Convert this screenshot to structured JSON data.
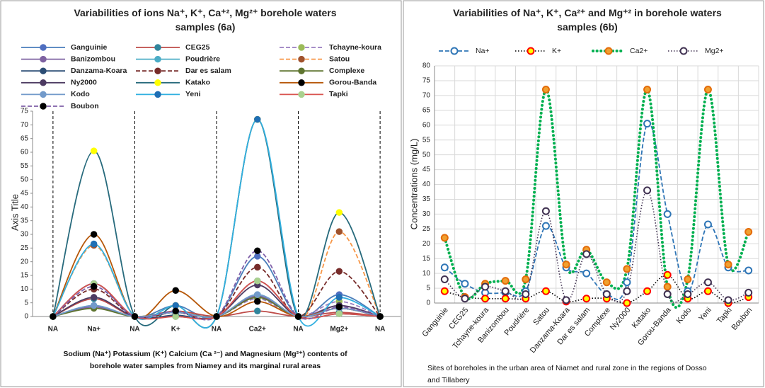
{
  "chart_data": [
    {
      "type": "line",
      "title": "Variabilities of ions Na⁺, K⁺, Ca⁺², Mg²⁺ borehole waters samples (6a)",
      "y_label": "Axis Title",
      "caption": "Sodium (Na⁺) Potassium  (K⁺) Calcium (Ca ²⁻) and Magnesium  (Mg²⁺) contents of borehole  water samples from Niamey and its marginal rural areas",
      "categories": [
        "NA",
        "Na+",
        "NA",
        "K+",
        "NA",
        "Ca2+",
        "NA",
        "Mg2+",
        "NA"
      ],
      "ylim": [
        0,
        75
      ],
      "yticks": [
        0,
        5,
        10,
        15,
        20,
        25,
        30,
        35,
        40,
        45,
        50,
        55,
        60,
        65,
        70,
        75
      ],
      "smooth": true,
      "series": [
        {
          "name": "Ganguinie",
          "color": "#4a7ebb",
          "marker_color": "#4f6ec0",
          "line_style": "solid",
          "values": [
            0,
            12,
            0,
            4,
            0,
            22,
            0,
            8,
            0
          ]
        },
        {
          "name": "CEG25",
          "color": "#be4b48",
          "marker_color": "#31859c",
          "line_style": "solid",
          "values": [
            0,
            6.5,
            0,
            2,
            0,
            2,
            0,
            1.5,
            0
          ]
        },
        {
          "name": "Tchayne-koura",
          "color": "#9a7fc0",
          "marker_color": "#9bbb59",
          "line_style": "dashed",
          "values": [
            0,
            3.5,
            0,
            1.5,
            0,
            6.5,
            0,
            5.5,
            0
          ]
        },
        {
          "name": "Banizombou",
          "color": "#7e62a1",
          "marker_color": "#7e62a1",
          "line_style": "solid",
          "values": [
            0,
            3.5,
            0,
            1.5,
            0,
            7.5,
            0,
            4,
            0
          ]
        },
        {
          "name": "Poudrière",
          "color": "#4bacc6",
          "marker_color": "#4bacc6",
          "line_style": "solid",
          "values": [
            0,
            4,
            0,
            1.5,
            0,
            8,
            0,
            3,
            0
          ]
        },
        {
          "name": "Satou",
          "color": "#f79646",
          "marker_color": "#a0522d",
          "line_style": "dashed",
          "values": [
            0,
            26,
            0,
            4,
            0,
            72,
            0,
            31,
            0
          ]
        },
        {
          "name": "Danzama-Koara",
          "color": "#2c4d75",
          "marker_color": "#2c4d75",
          "line_style": "solid",
          "values": [
            0,
            12,
            0,
            0.5,
            0,
            13,
            0,
            1,
            0
          ]
        },
        {
          "name": "Dar es salam",
          "color": "#772c2a",
          "marker_color": "#772c2a",
          "line_style": "dashed",
          "values": [
            0,
            10,
            0,
            1.5,
            0,
            18,
            0,
            16.5,
            0
          ]
        },
        {
          "name": "Complexe",
          "color": "#5f7530",
          "marker_color": "#5f7530",
          "line_style": "solid",
          "values": [
            0,
            3,
            0,
            1.5,
            0,
            7,
            0,
            3,
            0
          ]
        },
        {
          "name": "Ny2000",
          "color": "#4d3b62",
          "marker_color": "#4d3b62",
          "line_style": "solid",
          "values": [
            0,
            7,
            0,
            0,
            0,
            11.5,
            0,
            4,
            0
          ]
        },
        {
          "name": "Katako",
          "color": "#276a7c",
          "marker_color": "#ffff00",
          "line_style": "solid",
          "values": [
            0,
            60.5,
            0,
            4,
            0,
            72,
            0,
            38,
            0
          ]
        },
        {
          "name": "Gorou-Banda",
          "color": "#b65708",
          "marker_color": "#000000",
          "line_style": "solid",
          "values": [
            0,
            30,
            0,
            9.5,
            0,
            5.5,
            0,
            3,
            0
          ]
        },
        {
          "name": "Kodo",
          "color": "#729aca",
          "marker_color": "#729aca",
          "line_style": "solid",
          "values": [
            0,
            4,
            0,
            1.5,
            0,
            8,
            0,
            3,
            0
          ]
        },
        {
          "name": "Yeni",
          "color": "#31b0e0",
          "marker_color": "#1f6fb5",
          "line_style": "solid",
          "values": [
            0,
            26.5,
            0,
            4,
            0,
            72,
            0,
            7,
            0
          ]
        },
        {
          "name": "Tapki",
          "color": "#d9534f",
          "marker_color": "#a9d18e",
          "line_style": "solid",
          "values": [
            0,
            12,
            0,
            0,
            0,
            13,
            0,
            1,
            0
          ]
        },
        {
          "name": "Boubon",
          "color": "#7f5fa8",
          "marker_color": "#000000",
          "line_style": "dashed",
          "values": [
            0,
            11,
            0,
            2,
            0,
            24,
            0,
            3.5,
            0
          ]
        }
      ]
    },
    {
      "type": "line",
      "title": "Variabilities of Na⁺, K⁺, Ca²⁺ and Mg⁺² in borehole waters samples (6b)",
      "y_label": "Concentrations (mg/L)",
      "caption": "Sites of boreholes  in the urban area of Niamet and rural zone in the regions of Dosso and Tillabery",
      "categories": [
        "Ganguinie",
        "CEG25",
        "Tchayne-koura",
        "Banizombou",
        "Poudrière",
        "Satou",
        "Danzama-Koara",
        "Dar es salam",
        "Complexe",
        "Ny2000",
        "Katako",
        "Gorou-Banda",
        "Kodo",
        "Yeni",
        "Tapki",
        "Boubon"
      ],
      "ylim": [
        0,
        80
      ],
      "yticks": [
        0,
        5,
        10,
        15,
        20,
        25,
        30,
        35,
        40,
        45,
        50,
        55,
        60,
        65,
        70,
        75,
        80
      ],
      "grid": true,
      "smooth": true,
      "series": [
        {
          "name": "Na+",
          "color": "#2e75b6",
          "marker_color": "#ffffff",
          "marker_stroke": "#2e75b6",
          "line_style": "dashed",
          "values": [
            12,
            6.5,
            3.5,
            3.5,
            4,
            26,
            12,
            10,
            3,
            7,
            60.5,
            30,
            4,
            26.5,
            12,
            11
          ]
        },
        {
          "name": "K+",
          "color": "#000000",
          "marker_color": "#ffff00",
          "marker_stroke": "#ff0000",
          "line_style": "dotted",
          "values": [
            4,
            2,
            1.5,
            1.5,
            1.5,
            4,
            0.5,
            1.5,
            1.5,
            0,
            4,
            9.5,
            1.5,
            4,
            0,
            2
          ]
        },
        {
          "name": "Ca2+",
          "color": "#00b050",
          "marker_color": "#f0a030",
          "marker_stroke": "#e46c0a",
          "line_style": "thick-dotted",
          "values": [
            22,
            2,
            6.5,
            7.5,
            8,
            72,
            13,
            18,
            7,
            11.5,
            72,
            5.5,
            8,
            72,
            13,
            24
          ]
        },
        {
          "name": "Mg2+",
          "color": "#403151",
          "marker_color": "#ffffff",
          "marker_stroke": "#403151",
          "line_style": "dotted",
          "values": [
            8,
            1.5,
            5.5,
            4,
            3,
            31,
            1,
            16.5,
            3,
            4,
            38,
            3,
            3,
            7,
            1,
            3.5
          ]
        }
      ]
    }
  ]
}
